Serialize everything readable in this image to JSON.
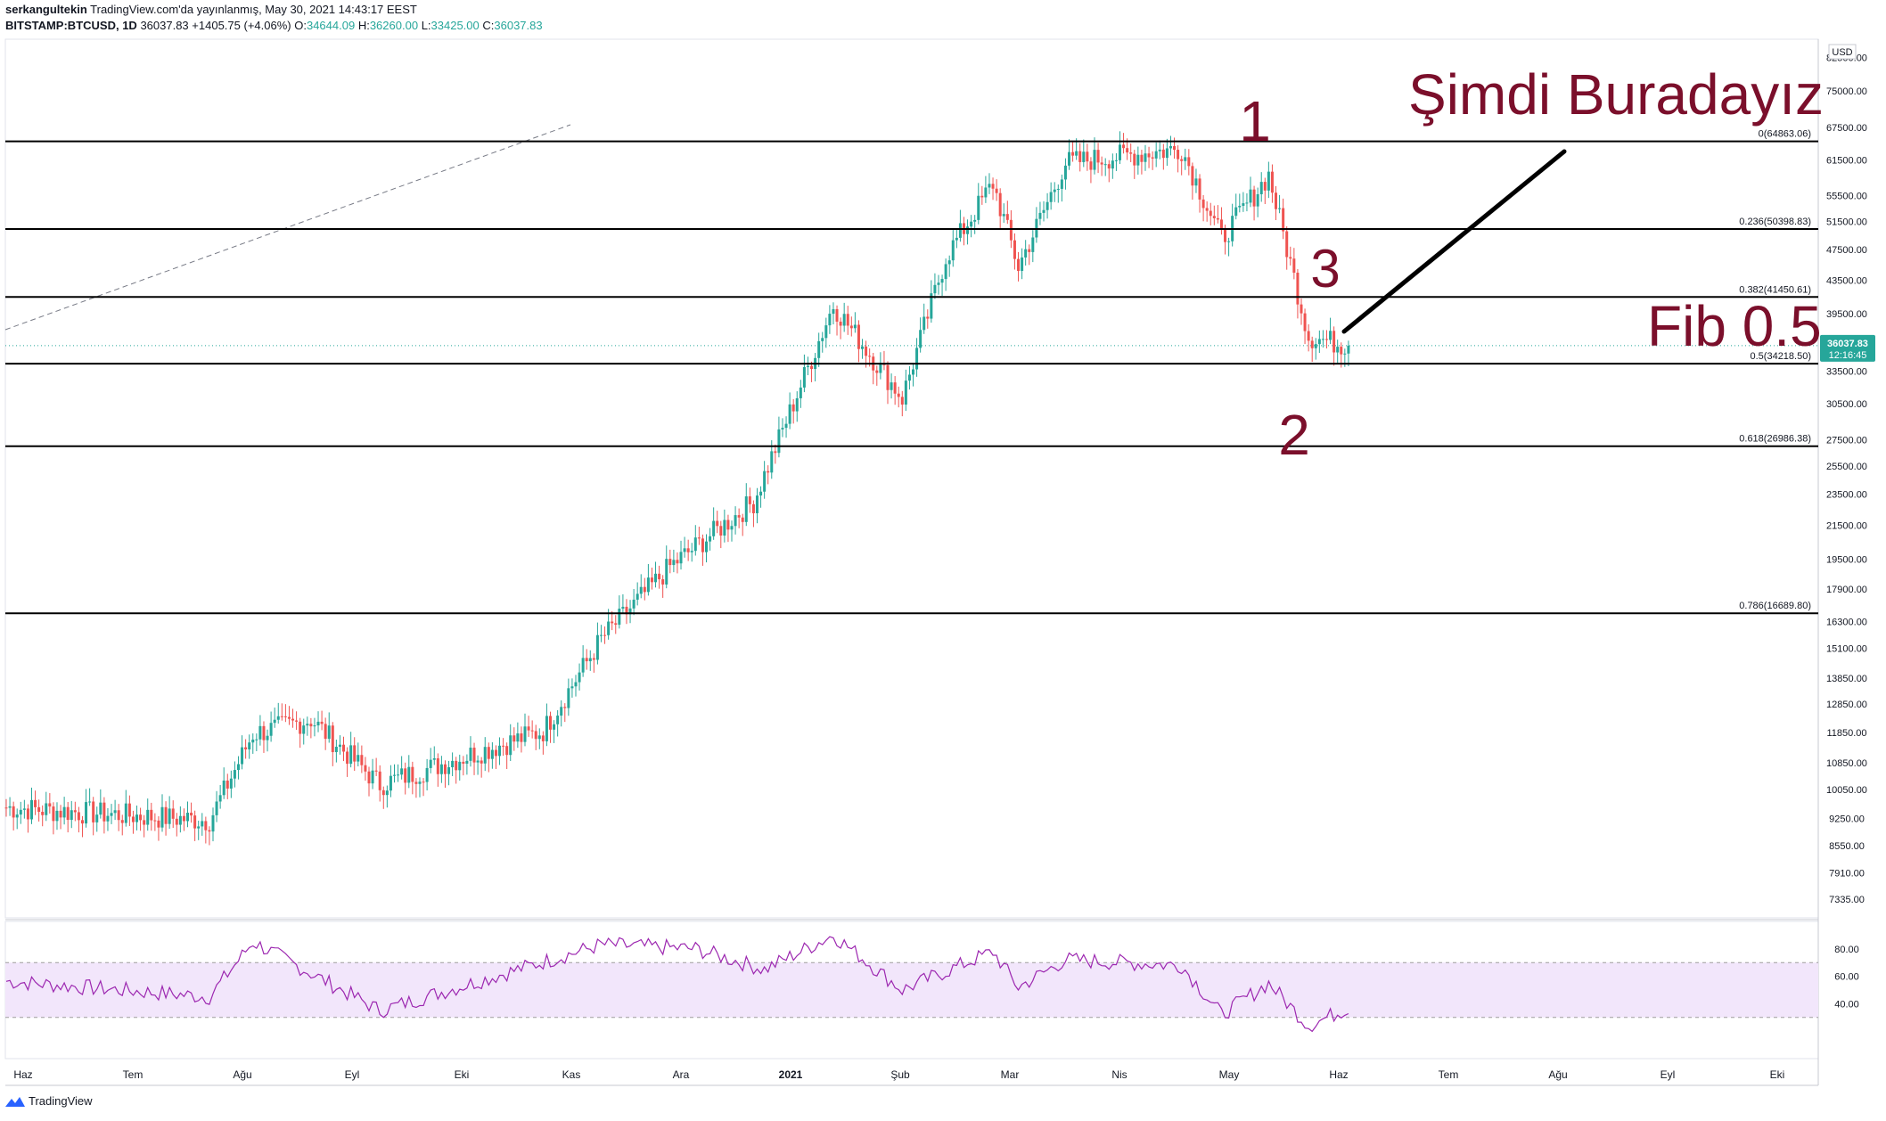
{
  "header": {
    "author": "serkangultekin",
    "published": "TradingView.com'da yayınlanmış, May 30, 2021 14:43:17 EEST",
    "symbol": "BITSTAMP:BTCUSD, 1D",
    "last": "36037.83",
    "change": "+1405.75 (+4.06%)",
    "o_label": "O:",
    "o": "34644.09",
    "h_label": "H:",
    "h": "36260.00",
    "l_label": "L:",
    "l": "33425.00",
    "c_label": "C:",
    "c": "36037.83"
  },
  "footer": {
    "brand": "TradingView",
    "logo_icon": "tradingview-logo-icon"
  },
  "colors": {
    "up": "#26a69a",
    "down": "#ef5350",
    "rsi_line": "#9c27b0",
    "rsi_band": "#f2e6fb",
    "annotation": "#7b0f2b",
    "fib_line": "#000000"
  },
  "chart_data": [
    {
      "type": "candlestick",
      "symbol": "BITSTAMP:BTCUSD",
      "interval": "1D",
      "y_scale": "log",
      "currency": "USD",
      "y_tick_labels": [
        "82500.00",
        "75000.00",
        "67500.00",
        "61500.00",
        "55500.00",
        "51500.00",
        "47500.00",
        "43500.00",
        "39500.00",
        "36037.83",
        "33500.00",
        "30500.00",
        "27500.00",
        "25500.00",
        "23500.00",
        "21500.00",
        "19500.00",
        "17900.00",
        "16300.00",
        "15100.00",
        "13850.00",
        "12850.00",
        "11850.00",
        "10850.00",
        "10050.00",
        "9250.00",
        "8550.00",
        "7910.00",
        "7335.00"
      ],
      "x_tick_labels": [
        "Haz",
        "Tem",
        "Ağu",
        "Eyl",
        "Eki",
        "Kas",
        "Ara",
        "2021",
        "Şub",
        "Mar",
        "Nis",
        "May",
        "Haz",
        "Tem",
        "Ağu",
        "Eyl",
        "Eki"
      ],
      "price_label": {
        "value": "36037.83",
        "countdown": "12:16:45"
      },
      "key_closes": [
        {
          "date": "2020-06-01",
          "close": 9500
        },
        {
          "date": "2020-07-20",
          "close": 9200
        },
        {
          "date": "2020-08-01",
          "close": 11800
        },
        {
          "date": "2020-08-17",
          "close": 12300
        },
        {
          "date": "2020-09-05",
          "close": 10200
        },
        {
          "date": "2020-10-20",
          "close": 11900
        },
        {
          "date": "2020-11-05",
          "close": 15500
        },
        {
          "date": "2020-11-24",
          "close": 19100
        },
        {
          "date": "2020-12-17",
          "close": 23000
        },
        {
          "date": "2021-01-08",
          "close": 40500
        },
        {
          "date": "2021-01-27",
          "close": 31000
        },
        {
          "date": "2021-02-08",
          "close": 46500
        },
        {
          "date": "2021-02-21",
          "close": 57500
        },
        {
          "date": "2021-02-28",
          "close": 45200
        },
        {
          "date": "2021-03-13",
          "close": 61000
        },
        {
          "date": "2021-04-14",
          "close": 63500
        },
        {
          "date": "2021-04-25",
          "close": 49000
        },
        {
          "date": "2021-05-08",
          "close": 58900
        },
        {
          "date": "2021-05-19",
          "close": 37000
        },
        {
          "date": "2021-05-30",
          "close": 36037.83
        }
      ],
      "fib_levels": [
        {
          "label": "0(64863.06)",
          "value": 64863.06
        },
        {
          "label": "0.236(50398.83)",
          "value": 50398.83
        },
        {
          "label": "0.382(41450.61)",
          "value": 41450.61
        },
        {
          "label": "0.5(34218.50)",
          "value": 34218.5
        },
        {
          "label": "0.618(26986.38)",
          "value": 26986.38
        },
        {
          "label": "0.786(16689.80)",
          "value": 16689.8
        }
      ],
      "annotations": [
        {
          "text": "Şimdi Buradayız"
        },
        {
          "text": "1"
        },
        {
          "text": "2"
        },
        {
          "text": "3"
        },
        {
          "text": "Fib 0.5"
        }
      ]
    },
    {
      "type": "line",
      "name": "RSI",
      "y_tick_labels": [
        "80.00",
        "60.00",
        "40.00"
      ],
      "band": [
        30,
        70
      ],
      "key_values": [
        {
          "date": "2020-06-01",
          "rsi": 55
        },
        {
          "date": "2020-07-20",
          "rsi": 45
        },
        {
          "date": "2020-08-01",
          "rsi": 85
        },
        {
          "date": "2020-09-05",
          "rsi": 35
        },
        {
          "date": "2020-11-05",
          "rsi": 83
        },
        {
          "date": "2020-12-01",
          "rsi": 80
        },
        {
          "date": "2020-12-20",
          "rsi": 65
        },
        {
          "date": "2021-01-08",
          "rsi": 90
        },
        {
          "date": "2021-01-27",
          "rsi": 50
        },
        {
          "date": "2021-02-21",
          "rsi": 78
        },
        {
          "date": "2021-02-28",
          "rsi": 52
        },
        {
          "date": "2021-03-13",
          "rsi": 72
        },
        {
          "date": "2021-04-14",
          "rsi": 68
        },
        {
          "date": "2021-04-25",
          "rsi": 32
        },
        {
          "date": "2021-05-08",
          "rsi": 55
        },
        {
          "date": "2021-05-19",
          "rsi": 24
        },
        {
          "date": "2021-05-30",
          "rsi": 37
        }
      ]
    }
  ]
}
